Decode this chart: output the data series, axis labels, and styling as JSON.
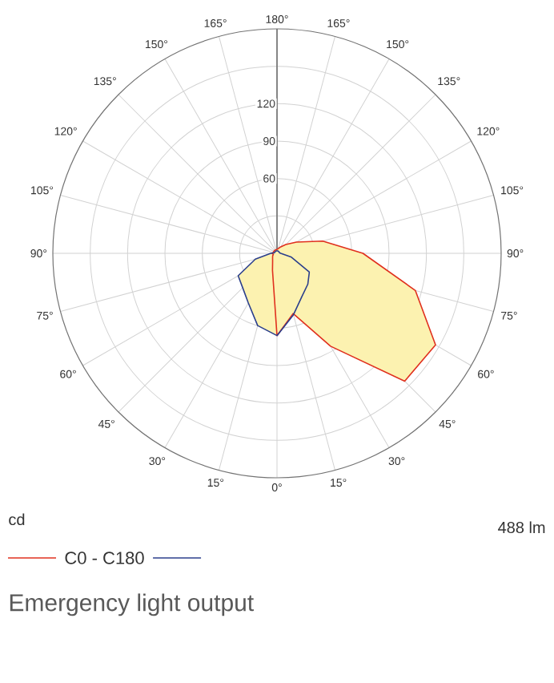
{
  "chart_data": {
    "type": "radar",
    "title": "Emergency light output",
    "ylabel": "cd",
    "annotations": [
      "488 lm"
    ],
    "categories": [
      "180°",
      "165°",
      "150°",
      "135°",
      "120°",
      "105°",
      "90°",
      "75°",
      "60°",
      "45°",
      "30°",
      "15°",
      "0°",
      "15°",
      "30°",
      "45°",
      "60°",
      "75°",
      "90°",
      "105°",
      "120°",
      "135°",
      "150°",
      "165°"
    ],
    "series": [
      {
        "name": "C0 - C180",
        "color": "#e0301e",
        "values": [
          3,
          4,
          6,
          10,
          18,
          38,
          69,
          115,
          147,
          145,
          86,
          50,
          66,
          14,
          7,
          5,
          4,
          3,
          4,
          3,
          3,
          3,
          3,
          3
        ]
      },
      {
        "color": "#2b3f8c",
        "values": [
          2,
          2,
          2,
          2,
          2,
          2,
          3,
          12,
          30,
          35,
          40,
          51,
          66,
          60,
          46,
          39,
          36,
          18,
          5,
          2,
          2,
          2,
          2,
          2
        ]
      }
    ],
    "ylim": [
      0,
      180
    ],
    "yticks": [
      60,
      90,
      120
    ],
    "grid": true,
    "legend": "bottom"
  }
}
